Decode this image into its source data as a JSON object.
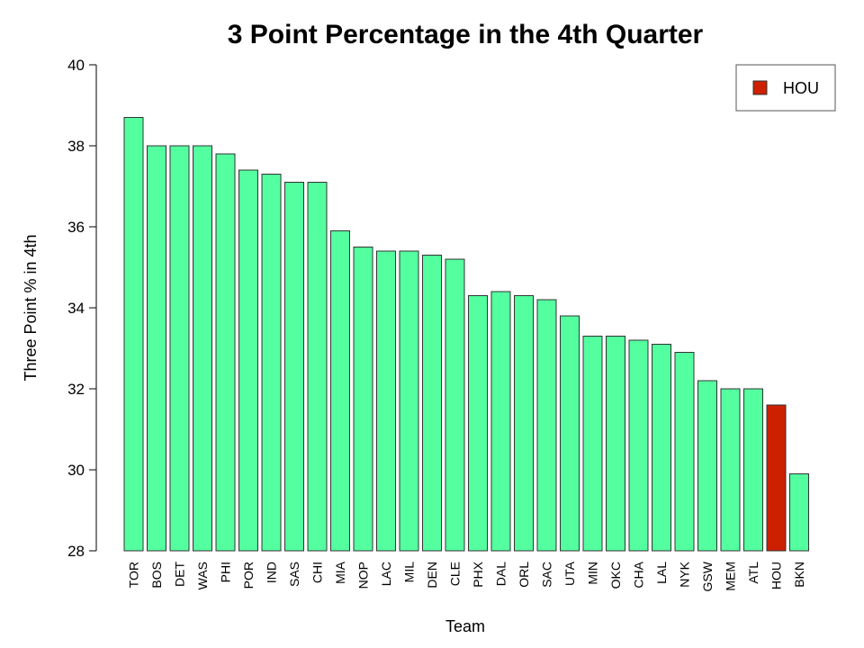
{
  "chart_data": {
    "type": "bar",
    "title": "3 Point Percentage in the 4th Quarter",
    "xlabel": "Team",
    "ylabel": "Three Point % in 4th",
    "ylim": [
      28,
      40
    ],
    "yticks": [
      "28",
      "30",
      "32",
      "34",
      "36",
      "38",
      "40"
    ],
    "categories": [
      "TOR",
      "BOS",
      "DET",
      "WAS",
      "PHI",
      "POR",
      "IND",
      "SAS",
      "CHI",
      "MIA",
      "NOP",
      "LAC",
      "MIL",
      "DEN",
      "CLE",
      "PHX",
      "DAL",
      "ORL",
      "SAC",
      "UTA",
      "MIN",
      "OKC",
      "CHA",
      "LAL",
      "NYK",
      "GSW",
      "MEM",
      "ATL",
      "HOU",
      "BKN"
    ],
    "values": [
      38.7,
      38.0,
      38.0,
      38.0,
      37.8,
      37.4,
      37.3,
      37.1,
      37.1,
      35.9,
      35.5,
      35.4,
      35.4,
      35.3,
      35.2,
      34.3,
      34.4,
      34.3,
      34.2,
      33.8,
      33.3,
      33.3,
      33.2,
      33.1,
      32.9,
      32.2,
      32.0,
      32.0,
      31.6,
      29.9
    ],
    "highlight": "HOU",
    "legend": {
      "entries": [
        "HOU"
      ],
      "placement": "top-right"
    },
    "grid": false,
    "colors": {
      "default": "#54ff9f",
      "highlight": "#cd2000",
      "border": "#333333"
    }
  }
}
